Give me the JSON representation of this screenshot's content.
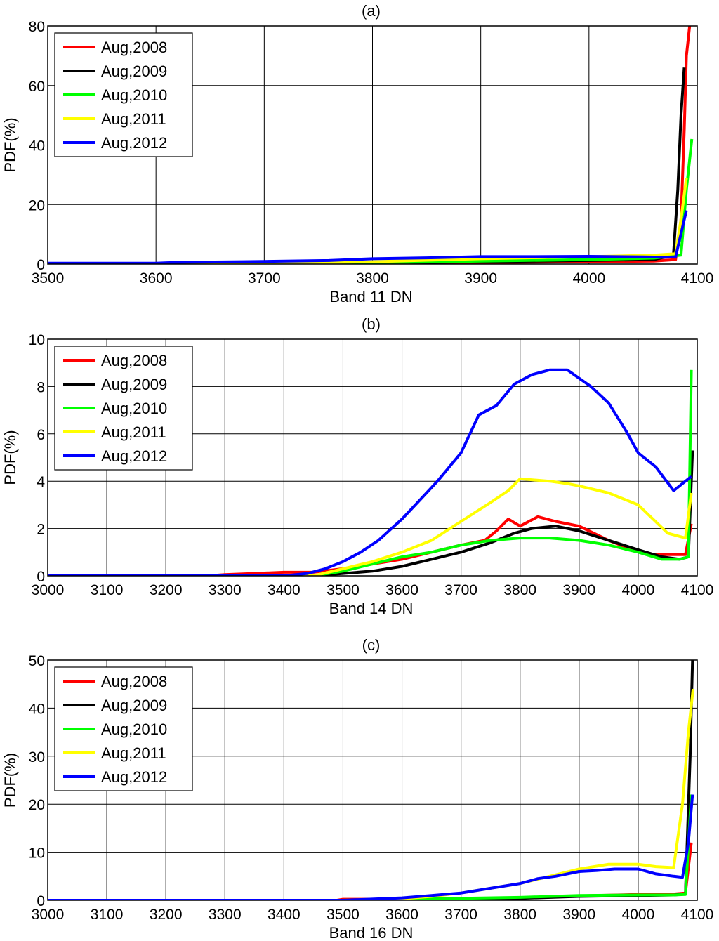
{
  "chart_data": [
    {
      "type": "line",
      "panel_label": "(a)",
      "xlabel": "Band 11 DN",
      "ylabel": "PDF(%)",
      "xlim": [
        3500,
        4100
      ],
      "ylim": [
        0,
        80
      ],
      "xticks": [
        3500,
        3600,
        3700,
        3800,
        3900,
        4000,
        4100
      ],
      "yticks": [
        0,
        20,
        40,
        60,
        80
      ],
      "grid": true,
      "legend_position": "top-left",
      "series": [
        {
          "name": "Aug,2008",
          "color": "#ff0000",
          "x": [
            3500,
            3600,
            3700,
            3800,
            3900,
            4000,
            4060,
            4080,
            4085,
            4088,
            4090,
            4093
          ],
          "y": [
            0,
            0,
            0,
            0.2,
            0.5,
            0.8,
            1.0,
            1.5,
            15,
            45,
            70,
            80
          ]
        },
        {
          "name": "Aug,2009",
          "color": "#000000",
          "x": [
            3500,
            3600,
            3700,
            3800,
            3900,
            4000,
            4060,
            4078,
            4082,
            4085,
            4088
          ],
          "y": [
            0,
            0,
            0,
            0.3,
            0.8,
            1.2,
            1.5,
            3,
            25,
            50,
            66
          ]
        },
        {
          "name": "Aug,2010",
          "color": "#00ff00",
          "x": [
            3500,
            3600,
            3700,
            3800,
            3900,
            4000,
            4060,
            4085,
            4090,
            4095
          ],
          "y": [
            0,
            0,
            0,
            0.4,
            1.0,
            1.5,
            2.0,
            3,
            25,
            42
          ]
        },
        {
          "name": "Aug,2011",
          "color": "#ffff00",
          "x": [
            3500,
            3600,
            3700,
            3800,
            3900,
            4000,
            4060,
            4080,
            4085,
            4090
          ],
          "y": [
            0,
            0,
            0.2,
            0.8,
            1.8,
            2.5,
            3.0,
            3.5,
            15,
            29
          ]
        },
        {
          "name": "Aug,2012",
          "color": "#0000ff",
          "x": [
            3500,
            3550,
            3600,
            3620,
            3680,
            3700,
            3720,
            3760,
            3800,
            3850,
            3900,
            3950,
            4000,
            4050,
            4070,
            4080,
            4090
          ],
          "y": [
            0.3,
            0.3,
            0.3,
            0.6,
            0.8,
            0.9,
            1.0,
            1.2,
            1.8,
            2.1,
            2.5,
            2.5,
            2.6,
            2.4,
            2.3,
            2.4,
            18
          ]
        }
      ]
    },
    {
      "type": "line",
      "panel_label": "(b)",
      "xlabel": "Band 14 DN",
      "ylabel": "PDF(%)",
      "xlim": [
        3000,
        4100
      ],
      "ylim": [
        0,
        10
      ],
      "xticks": [
        3000,
        3100,
        3200,
        3300,
        3400,
        3500,
        3600,
        3700,
        3800,
        3900,
        4000,
        4100
      ],
      "yticks": [
        0,
        2,
        4,
        6,
        8,
        10
      ],
      "grid": true,
      "legend_position": "top-left",
      "series": [
        {
          "name": "Aug,2008",
          "color": "#ff0000",
          "x": [
            3000,
            3270,
            3300,
            3350,
            3400,
            3450,
            3500,
            3550,
            3600,
            3650,
            3700,
            3740,
            3760,
            3780,
            3800,
            3830,
            3860,
            3900,
            3950,
            4000,
            4030,
            4060,
            4080,
            4090
          ],
          "y": [
            0,
            0,
            0.05,
            0.1,
            0.15,
            0.15,
            0.3,
            0.5,
            0.7,
            1.0,
            1.3,
            1.5,
            1.9,
            2.4,
            2.1,
            2.5,
            2.3,
            2.1,
            1.5,
            1.0,
            0.9,
            0.9,
            0.9,
            2.2
          ]
        },
        {
          "name": "Aug,2009",
          "color": "#000000",
          "x": [
            3000,
            3450,
            3500,
            3550,
            3600,
            3650,
            3700,
            3750,
            3790,
            3820,
            3860,
            3900,
            3950,
            4000,
            4040,
            4070,
            4085,
            4092
          ],
          "y": [
            0,
            0,
            0.1,
            0.2,
            0.4,
            0.7,
            1.0,
            1.4,
            1.8,
            2.0,
            2.1,
            1.9,
            1.5,
            1.1,
            0.8,
            0.7,
            0.8,
            5.3
          ]
        },
        {
          "name": "Aug,2010",
          "color": "#00ff00",
          "x": [
            3000,
            3450,
            3500,
            3550,
            3600,
            3650,
            3700,
            3750,
            3800,
            3850,
            3900,
            3950,
            4000,
            4040,
            4070,
            4085,
            4090
          ],
          "y": [
            0,
            0,
            0.2,
            0.5,
            0.8,
            1.0,
            1.3,
            1.5,
            1.6,
            1.6,
            1.5,
            1.3,
            1.0,
            0.7,
            0.7,
            0.8,
            8.7
          ]
        },
        {
          "name": "Aug,2011",
          "color": "#ffff00",
          "x": [
            3000,
            3450,
            3500,
            3550,
            3600,
            3650,
            3700,
            3750,
            3780,
            3800,
            3850,
            3880,
            3900,
            3950,
            4000,
            4050,
            4080,
            4090
          ],
          "y": [
            0,
            0,
            0.3,
            0.6,
            1.0,
            1.5,
            2.3,
            3.1,
            3.6,
            4.1,
            4.0,
            3.9,
            3.8,
            3.5,
            3.0,
            1.8,
            1.6,
            3.5
          ]
        },
        {
          "name": "Aug,2012",
          "color": "#0000ff",
          "x": [
            3000,
            3400,
            3440,
            3470,
            3500,
            3530,
            3560,
            3600,
            3630,
            3660,
            3700,
            3730,
            3760,
            3790,
            3820,
            3850,
            3880,
            3920,
            3950,
            3980,
            4000,
            4030,
            4060,
            4080,
            4090
          ],
          "y": [
            0,
            0,
            0.1,
            0.3,
            0.6,
            1.0,
            1.5,
            2.4,
            3.2,
            4.0,
            5.2,
            6.8,
            7.2,
            8.1,
            8.5,
            8.7,
            8.7,
            8.0,
            7.3,
            6.1,
            5.2,
            4.6,
            3.6,
            4.0,
            4.2
          ]
        }
      ]
    },
    {
      "type": "line",
      "panel_label": "(c)",
      "xlabel": "Band 16 DN",
      "ylabel": "PDF(%)",
      "xlim": [
        3000,
        4100
      ],
      "ylim": [
        0,
        50
      ],
      "xticks": [
        3000,
        3100,
        3200,
        3300,
        3400,
        3500,
        3600,
        3700,
        3800,
        3900,
        4000,
        4100
      ],
      "yticks": [
        0,
        10,
        20,
        30,
        40,
        50
      ],
      "grid": true,
      "legend_position": "top-left",
      "series": [
        {
          "name": "Aug,2008",
          "color": "#ff0000",
          "x": [
            3000,
            3490,
            3500,
            3600,
            3700,
            3800,
            3900,
            4000,
            4060,
            4080,
            4090
          ],
          "y": [
            0,
            0,
            0.2,
            0.2,
            0.3,
            0.5,
            0.9,
            1.2,
            1.3,
            1.5,
            12
          ]
        },
        {
          "name": "Aug,2009",
          "color": "#000000",
          "x": [
            3000,
            3500,
            3600,
            3700,
            3800,
            3900,
            4000,
            4060,
            4080,
            4088,
            4092
          ],
          "y": [
            0,
            0,
            0.1,
            0.2,
            0.4,
            0.8,
            1.0,
            1.1,
            1.3,
            30,
            50
          ]
        },
        {
          "name": "Aug,2010",
          "color": "#00ff00",
          "x": [
            3000,
            3500,
            3600,
            3700,
            3800,
            3900,
            4000,
            4060,
            4080,
            4090
          ],
          "y": [
            0,
            0,
            0.2,
            0.4,
            0.6,
            1.0,
            1.1,
            1.1,
            1.2,
            22
          ]
        },
        {
          "name": "Aug,2011",
          "color": "#ffff00",
          "x": [
            3000,
            3500,
            3600,
            3650,
            3700,
            3750,
            3800,
            3850,
            3900,
            3950,
            4000,
            4030,
            4060,
            4075,
            4085,
            4093
          ],
          "y": [
            0,
            0,
            0.3,
            0.8,
            1.5,
            2.5,
            3.5,
            5.0,
            6.5,
            7.5,
            7.5,
            7.0,
            6.8,
            20,
            35,
            44
          ]
        },
        {
          "name": "Aug,2012",
          "color": "#0000ff",
          "x": [
            3000,
            3500,
            3600,
            3650,
            3700,
            3750,
            3800,
            3830,
            3860,
            3900,
            3930,
            3960,
            4000,
            4030,
            4060,
            4075,
            4085,
            4092
          ],
          "y": [
            0,
            0,
            0.5,
            1.0,
            1.5,
            2.5,
            3.5,
            4.5,
            5.0,
            6.0,
            6.2,
            6.5,
            6.5,
            5.5,
            5.0,
            4.8,
            12,
            22
          ]
        }
      ]
    }
  ]
}
